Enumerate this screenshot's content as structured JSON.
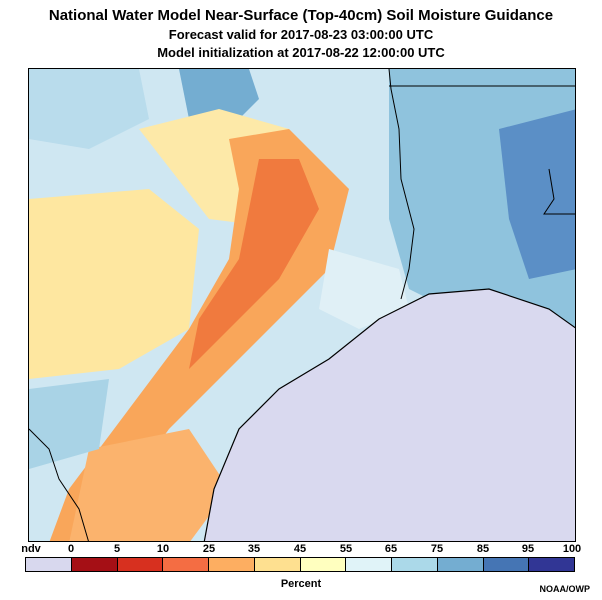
{
  "header": {
    "title": "National Water Model Near-Surface (Top-40cm) Soil Moisture Guidance",
    "forecast_valid": "Forecast valid for 2017-08-23 03:00:00 UTC",
    "model_init": "Model initialization at 2017-08-22 12:00:00 UTC"
  },
  "legend": {
    "labels": [
      "ndv",
      "0",
      "5",
      "10",
      "25",
      "35",
      "45",
      "55",
      "65",
      "75",
      "85",
      "95",
      "100"
    ],
    "colors": [
      "#d8d8ee",
      "#a50f15",
      "#d7301f",
      "#f46d43",
      "#fdae61",
      "#fee090",
      "#ffffbf",
      "#e0f3f8",
      "#abd9e9",
      "#74add1",
      "#4575b4",
      "#313695"
    ],
    "title": "Percent"
  },
  "credit": "NOAA/OWP",
  "map_colors": {
    "ocean": "#d9d9ef",
    "wet_base": "#cfe7f2"
  }
}
